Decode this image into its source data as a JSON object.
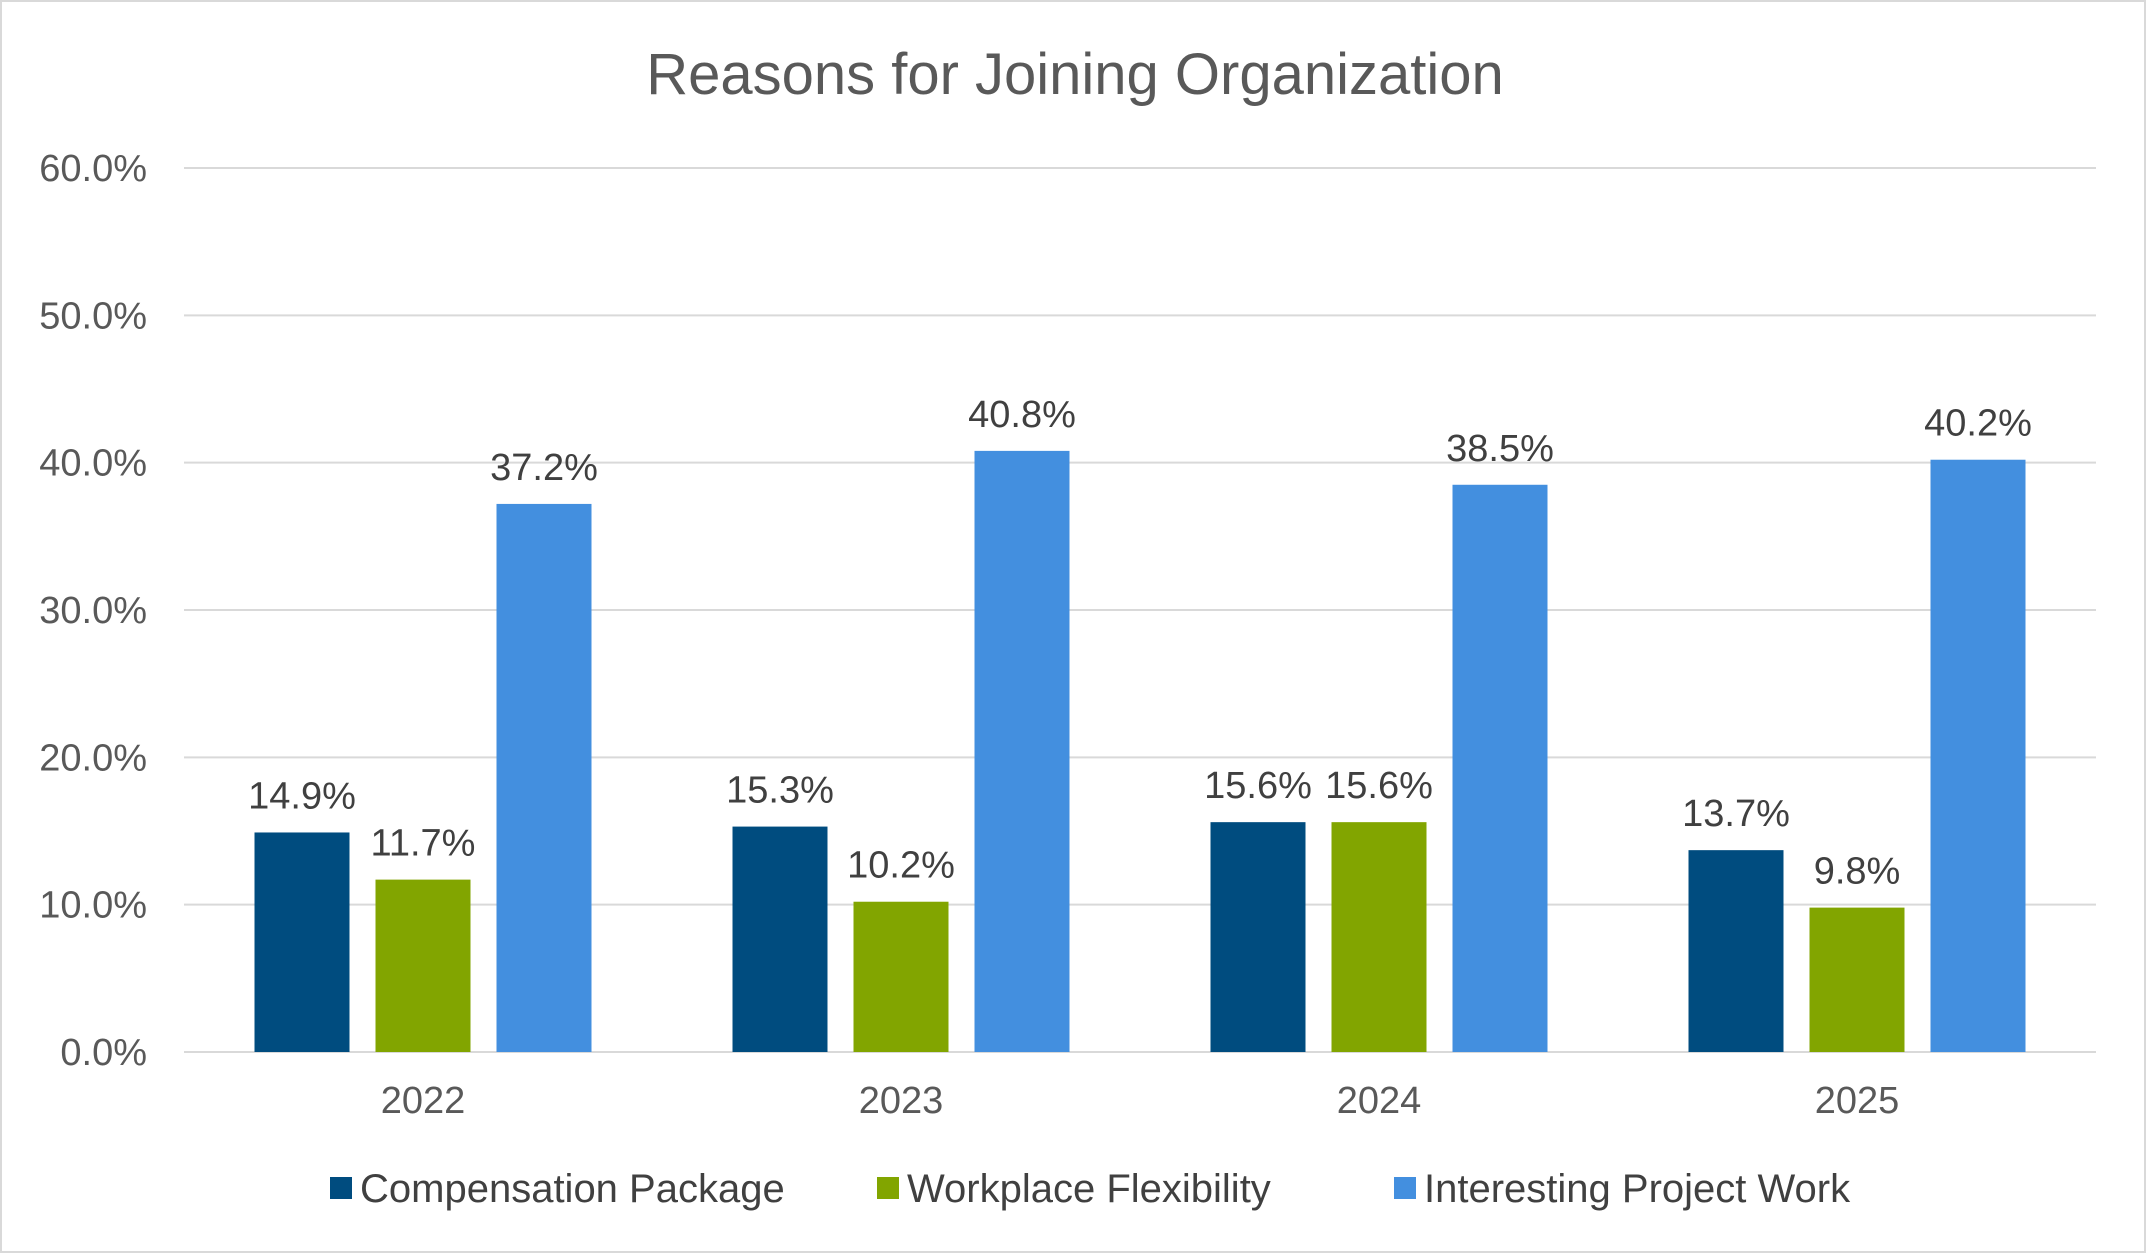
{
  "chart_data": {
    "type": "bar",
    "title": "Reasons for Joining Organization",
    "xlabel": "",
    "ylabel": "",
    "categories": [
      "2022",
      "2023",
      "2024",
      "2025"
    ],
    "series": [
      {
        "name": "Compensation Package",
        "color": "#004c7f",
        "values": [
          14.9,
          15.3,
          15.6,
          13.7
        ],
        "labels": [
          "14.9%",
          "15.3%",
          "15.6%",
          "13.7%"
        ]
      },
      {
        "name": "Workplace Flexibility",
        "color": "#82a500",
        "values": [
          11.7,
          10.2,
          15.6,
          9.8
        ],
        "labels": [
          "11.7%",
          "10.2%",
          "15.6%",
          "9.8%"
        ]
      },
      {
        "name": "Interesting Project Work",
        "color": "#438fdf",
        "values": [
          37.2,
          40.8,
          38.5,
          40.2
        ],
        "labels": [
          "37.2%",
          "40.8%",
          "38.5%",
          "40.2%"
        ]
      }
    ],
    "ylim": [
      0,
      60
    ],
    "yticks": [
      0,
      10,
      20,
      30,
      40,
      50,
      60
    ],
    "ytick_labels": [
      "0.0%",
      "10.0%",
      "20.0%",
      "30.0%",
      "40.0%",
      "50.0%",
      "60.0%"
    ],
    "grid": true,
    "legend_position": "bottom"
  }
}
